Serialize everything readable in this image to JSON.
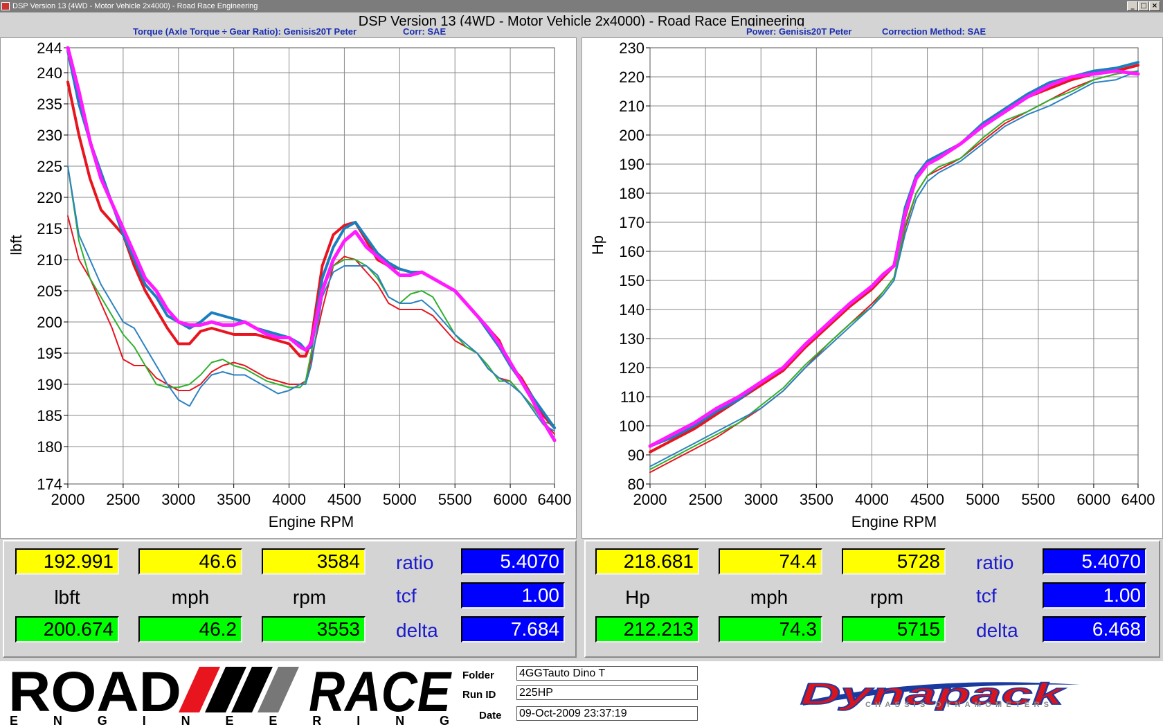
{
  "window": {
    "title": "DSP Version 13 (4WD - Motor Vehicle 2x4000) - Road Race Engineering"
  },
  "main_title": "DSP Version 13 (4WD - Motor Vehicle 2x4000) - Road Race Engineering",
  "left_header": {
    "torque": "Torque (Axle Torque ÷ Gear Ratio): Genisis20T Peter",
    "corr": "Corr: SAE"
  },
  "right_header": {
    "power": "Power: Genisis20T Peter",
    "corr": "Correction Method: SAE"
  },
  "chart_data": [
    {
      "type": "line",
      "xlabel": "Engine RPM",
      "ylabel": "lbft",
      "xlim": [
        2000,
        6400
      ],
      "ylim": [
        174,
        244
      ],
      "xticks": [
        2000,
        2500,
        3000,
        3500,
        4000,
        4500,
        5000,
        5500,
        6000,
        6400
      ],
      "yticks": [
        174,
        180,
        185,
        190,
        195,
        200,
        205,
        210,
        215,
        220,
        225,
        230,
        235,
        240,
        244
      ],
      "grid": true,
      "series": [
        {
          "color": "#e8141e",
          "width": 4,
          "x": [
            2000,
            2100,
            2200,
            2300,
            2400,
            2500,
            2600,
            2700,
            2800,
            2900,
            3000,
            3100,
            3200,
            3300,
            3400,
            3500,
            3600,
            3700,
            3800,
            3900,
            4000,
            4100,
            4150,
            4200,
            4300,
            4400,
            4500,
            4600,
            4700,
            4800,
            4900,
            5000,
            5100,
            5200,
            5300,
            5400,
            5500,
            5600,
            5700,
            5800,
            5900,
            6000,
            6100,
            6200,
            6300,
            6400
          ],
          "y": [
            238.5,
            230,
            223,
            218,
            216,
            214,
            209,
            205,
            202,
            199,
            196.5,
            196.5,
            198.5,
            199,
            198.5,
            198,
            198,
            198,
            197.5,
            197,
            196.5,
            194.5,
            194.5,
            197,
            209,
            214,
            215.5,
            216,
            213,
            210,
            209,
            208.5,
            208,
            208,
            207,
            206,
            205,
            203,
            201,
            199,
            197,
            193,
            191,
            188,
            185,
            183
          ]
        },
        {
          "color": "#1a7fbf",
          "width": 4,
          "x": [
            2000,
            2100,
            2200,
            2300,
            2400,
            2500,
            2600,
            2700,
            2800,
            2900,
            3000,
            3100,
            3200,
            3300,
            3400,
            3500,
            3600,
            3700,
            3800,
            3900,
            4000,
            4100,
            4150,
            4200,
            4300,
            4400,
            4500,
            4600,
            4700,
            4800,
            4900,
            5000,
            5100,
            5200,
            5300,
            5400,
            5500,
            5600,
            5700,
            5800,
            5900,
            6000,
            6100,
            6200,
            6300,
            6400
          ],
          "y": [
            243.5,
            235,
            229,
            224,
            219,
            214,
            210,
            206,
            204,
            201,
            200,
            199,
            200,
            201.5,
            201,
            200.5,
            200,
            199,
            198.5,
            198,
            197.5,
            196.5,
            195.5,
            196,
            207,
            212,
            215,
            216,
            213.5,
            211,
            209.5,
            208.5,
            208,
            208,
            207,
            206,
            205,
            203,
            201,
            198.5,
            196,
            193,
            190.5,
            188,
            185.5,
            183
          ]
        },
        {
          "color": "#ff1aff",
          "width": 5,
          "x": [
            2000,
            2100,
            2200,
            2300,
            2400,
            2500,
            2600,
            2700,
            2800,
            2900,
            3000,
            3100,
            3200,
            3300,
            3400,
            3500,
            3600,
            3700,
            3800,
            3900,
            4000,
            4100,
            4150,
            4200,
            4300,
            4400,
            4500,
            4600,
            4700,
            4800,
            4900,
            5000,
            5100,
            5200,
            5300,
            5400,
            5500,
            5600,
            5700,
            5800,
            5900,
            6000,
            6100,
            6200,
            6300,
            6400
          ],
          "y": [
            244,
            237,
            229,
            223,
            219,
            215,
            211,
            207,
            205,
            202,
            200,
            199.5,
            199.5,
            200,
            199.5,
            199.5,
            200,
            199,
            198,
            197.5,
            197.5,
            196,
            195.5,
            196.5,
            205,
            210,
            213,
            214.5,
            212,
            210.5,
            209,
            207.5,
            207.5,
            208,
            207,
            206,
            205,
            203,
            201,
            199,
            196.5,
            193.5,
            190.5,
            187.5,
            184,
            181
          ]
        },
        {
          "color": "#e8141e",
          "width": 2,
          "x": [
            2000,
            2100,
            2200,
            2300,
            2400,
            2500,
            2600,
            2700,
            2800,
            2900,
            3000,
            3100,
            3200,
            3300,
            3400,
            3500,
            3600,
            3700,
            3800,
            3900,
            4000,
            4100,
            4150,
            4200,
            4300,
            4400,
            4500,
            4600,
            4700,
            4800,
            4900,
            5000,
            5100,
            5200,
            5300,
            5400,
            5500,
            5600,
            5700,
            5800,
            5900,
            6000,
            6100,
            6200,
            6300,
            6400
          ],
          "y": [
            217,
            210,
            207,
            203,
            199,
            194,
            193,
            193,
            191,
            190,
            189,
            189,
            190,
            192,
            193,
            193.5,
            193,
            192,
            191,
            190.5,
            190,
            190,
            190.5,
            194,
            202,
            209,
            210.5,
            210,
            208,
            206,
            203,
            202,
            202,
            202,
            201,
            199,
            197,
            196,
            195,
            192.5,
            191,
            190.5,
            188.5,
            186.5,
            184,
            182
          ]
        },
        {
          "color": "#2db02d",
          "width": 2,
          "x": [
            2000,
            2100,
            2200,
            2300,
            2400,
            2500,
            2600,
            2700,
            2800,
            2900,
            3000,
            3100,
            3200,
            3300,
            3400,
            3500,
            3600,
            3700,
            3800,
            3900,
            4000,
            4100,
            4150,
            4200,
            4300,
            4400,
            4500,
            4600,
            4700,
            4800,
            4900,
            5000,
            5100,
            5200,
            5300,
            5400,
            5500,
            5600,
            5700,
            5800,
            5900,
            6000,
            6100,
            6200,
            6300,
            6400
          ],
          "y": [
            225,
            213,
            207,
            204,
            201,
            198,
            196,
            193,
            190,
            189.5,
            189.5,
            190,
            191.5,
            193.5,
            194,
            193,
            192.5,
            191.5,
            190.5,
            190,
            189.5,
            189.5,
            190.5,
            195,
            205,
            209,
            210,
            210,
            209,
            207,
            204,
            203,
            204.5,
            205,
            204,
            201,
            198,
            196,
            195,
            193,
            190.5,
            190.5,
            188.5,
            186.5,
            184,
            183.5
          ]
        },
        {
          "color": "#2a82c2",
          "width": 2,
          "x": [
            2000,
            2100,
            2200,
            2300,
            2400,
            2500,
            2600,
            2700,
            2800,
            2900,
            3000,
            3100,
            3200,
            3300,
            3400,
            3500,
            3600,
            3700,
            3800,
            3900,
            4000,
            4100,
            4150,
            4200,
            4300,
            4400,
            4500,
            4600,
            4700,
            4800,
            4900,
            5000,
            5100,
            5200,
            5300,
            5400,
            5500,
            5600,
            5700,
            5800,
            5900,
            6000,
            6100,
            6200,
            6300,
            6400
          ],
          "y": [
            225,
            214,
            210,
            206,
            203,
            200,
            199,
            196,
            193,
            190,
            187.5,
            186.5,
            189.5,
            191.5,
            192,
            191.5,
            191.5,
            190.5,
            189.5,
            188.5,
            189,
            190,
            190,
            193,
            204,
            208,
            209,
            209,
            209,
            207.5,
            204,
            203,
            203,
            203.5,
            202,
            200,
            198,
            196.5,
            195,
            192.5,
            191,
            190,
            188.5,
            186,
            183.5,
            182.5
          ]
        }
      ]
    },
    {
      "type": "line",
      "xlabel": "Engine RPM",
      "ylabel": "Hp",
      "xlim": [
        2000,
        6400
      ],
      "ylim": [
        80,
        230
      ],
      "xticks": [
        2000,
        2500,
        3000,
        3500,
        4000,
        4500,
        5000,
        5500,
        6000,
        6400
      ],
      "yticks": [
        80,
        90,
        100,
        110,
        120,
        130,
        140,
        150,
        160,
        170,
        180,
        190,
        200,
        210,
        220,
        230
      ],
      "grid": true,
      "series": [
        {
          "color": "#e8141e",
          "width": 4,
          "x": [
            2000,
            2200,
            2400,
            2600,
            2800,
            3000,
            3200,
            3400,
            3600,
            3800,
            4000,
            4100,
            4200,
            4300,
            4400,
            4500,
            4600,
            4800,
            5000,
            5200,
            5400,
            5600,
            5800,
            6000,
            6200,
            6400
          ],
          "y": [
            91,
            95,
            99,
            104,
            109,
            114,
            119,
            127,
            134,
            141,
            147,
            151,
            155,
            172,
            185,
            190,
            192,
            197,
            203,
            208,
            213,
            216,
            219,
            221,
            222,
            224
          ]
        },
        {
          "color": "#1a7fbf",
          "width": 4,
          "x": [
            2000,
            2200,
            2400,
            2600,
            2800,
            3000,
            3200,
            3400,
            3600,
            3800,
            4000,
            4100,
            4200,
            4300,
            4400,
            4500,
            4600,
            4800,
            5000,
            5200,
            5400,
            5600,
            5800,
            6000,
            6200,
            6400
          ],
          "y": [
            93,
            96,
            100,
            105,
            109,
            115,
            120,
            128,
            135,
            142,
            148,
            152,
            155,
            175,
            186,
            191,
            193,
            197,
            204,
            209,
            214,
            218,
            220,
            222,
            223,
            225
          ]
        },
        {
          "color": "#ff1aff",
          "width": 5,
          "x": [
            2000,
            2200,
            2400,
            2600,
            2800,
            3000,
            3200,
            3400,
            3600,
            3800,
            4000,
            4100,
            4200,
            4300,
            4400,
            4500,
            4600,
            4800,
            5000,
            5200,
            5400,
            5600,
            5800,
            6000,
            6200,
            6400
          ],
          "y": [
            93,
            97,
            101,
            106,
            110,
            115,
            120,
            128,
            135,
            142,
            148,
            152,
            155,
            173,
            185,
            190,
            192,
            197,
            203,
            208,
            213,
            217,
            220,
            221,
            222,
            221
          ]
        },
        {
          "color": "#e8141e",
          "width": 2,
          "x": [
            2000,
            2200,
            2400,
            2600,
            2800,
            3000,
            3200,
            3400,
            3600,
            3800,
            4000,
            4100,
            4200,
            4300,
            4400,
            4500,
            4600,
            4800,
            5000,
            5200,
            5400,
            5600,
            5800,
            6000,
            6200,
            6400
          ],
          "y": [
            84,
            88,
            92,
            96,
            101,
            106,
            112,
            120,
            128,
            135,
            142,
            146,
            151,
            168,
            180,
            186,
            188,
            192,
            198,
            204,
            208,
            212,
            216,
            219,
            221,
            222
          ]
        },
        {
          "color": "#2db02d",
          "width": 2,
          "x": [
            2000,
            2200,
            2400,
            2600,
            2800,
            3000,
            3200,
            3400,
            3600,
            3800,
            4000,
            4100,
            4200,
            4300,
            4400,
            4500,
            4600,
            4800,
            5000,
            5200,
            5400,
            5600,
            5800,
            6000,
            6200,
            6400
          ],
          "y": [
            85,
            89,
            93,
            97,
            101,
            107,
            113,
            121,
            128,
            135,
            141,
            146,
            151,
            169,
            180,
            186,
            189,
            192,
            199,
            205,
            208,
            212,
            215,
            219,
            221,
            222
          ]
        },
        {
          "color": "#2a82c2",
          "width": 2,
          "x": [
            2000,
            2200,
            2400,
            2600,
            2800,
            3000,
            3200,
            3400,
            3600,
            3800,
            4000,
            4100,
            4200,
            4300,
            4400,
            4500,
            4600,
            4800,
            5000,
            5200,
            5400,
            5600,
            5800,
            6000,
            6200,
            6400
          ],
          "y": [
            86,
            90,
            94,
            98,
            102,
            106,
            112,
            120,
            127,
            134,
            141,
            145,
            150,
            166,
            178,
            184,
            187,
            191,
            197,
            203,
            207,
            210,
            214,
            218,
            219,
            222
          ]
        }
      ]
    }
  ],
  "left_readouts": {
    "cursor_value": "192.991",
    "cursor_speed": "46.6",
    "cursor_rpm": "3584",
    "unit_value": "lbft",
    "unit_speed": "mph",
    "unit_rpm": "rpm",
    "ref_value": "200.674",
    "ref_speed": "46.2",
    "ref_rpm": "3553",
    "ratio_label": "ratio",
    "ratio_value": "5.4070",
    "tcf_label": "tcf",
    "tcf_value": "1.00",
    "delta_label": "delta",
    "delta_value": "7.684"
  },
  "right_readouts": {
    "cursor_value": "218.681",
    "cursor_speed": "74.4",
    "cursor_rpm": "5728",
    "unit_value": "Hp",
    "unit_speed": "mph",
    "unit_rpm": "rpm",
    "ref_value": "212.213",
    "ref_speed": "74.3",
    "ref_rpm": "5715",
    "ratio_label": "ratio",
    "ratio_value": "5.4070",
    "tcf_label": "tcf",
    "tcf_value": "1.00",
    "delta_label": "delta",
    "delta_value": "6.468"
  },
  "footer": {
    "folder_label": "Folder",
    "folder_value": "4GGTauto Dino T",
    "runid_label": "Run ID",
    "runid_value": "225HP",
    "date_label": "Date",
    "date_value": "09-Oct-2009  23:37:19",
    "logo_left_top": "ROAD",
    "logo_left_right": "RACE",
    "logo_left_bottom": "E N G I N E E R I N G",
    "logo_right_main": "Dynapack",
    "logo_right_sub": "CHASSIS DYNAMOMETERS"
  },
  "colors": {
    "yellow_box": "#ffff00",
    "green_box": "#00ff00",
    "blue_box": "#0000ff",
    "label_blue": "#1a1acc"
  }
}
